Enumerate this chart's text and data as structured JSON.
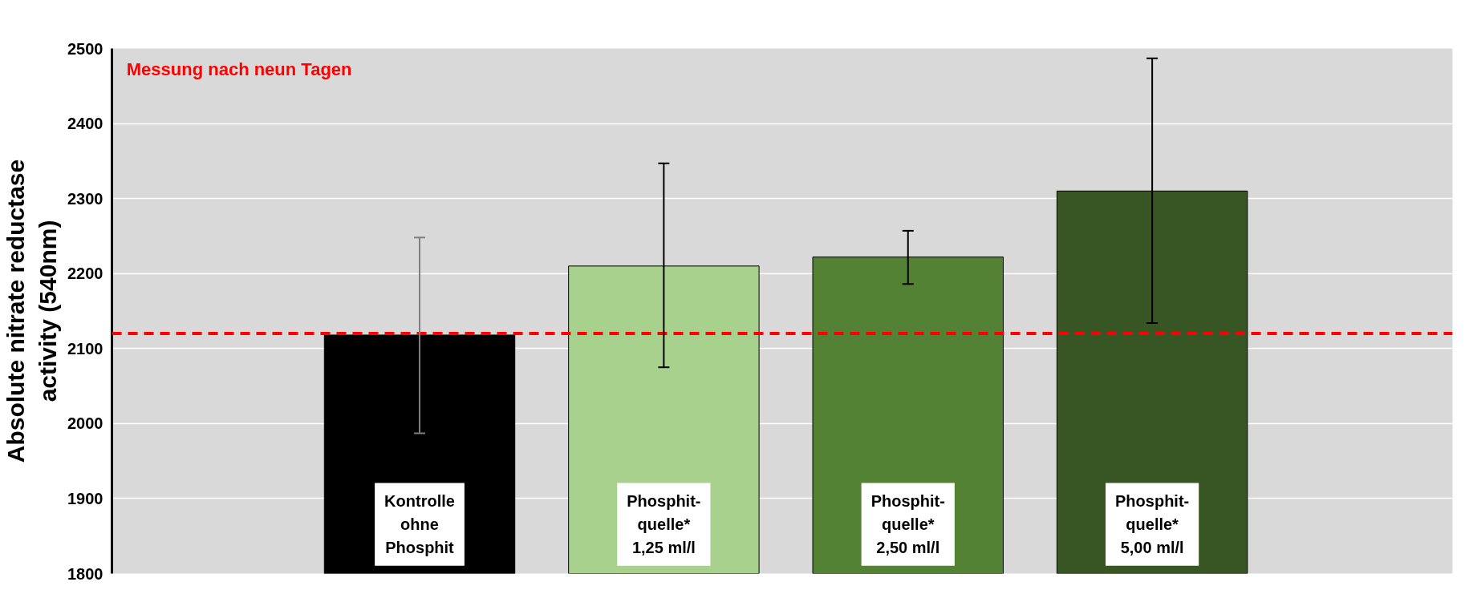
{
  "chart_data": {
    "type": "bar",
    "ylabel": "Absolute nitrate reductase\nactivity (540nm)",
    "categories": [
      "Kontrolle\nohne\nPhosphit",
      "Phosphit-\nquelle*\n1,25 ml/l",
      "Phosphit-\nquelle*\n2,50 ml/l",
      "Phosphit-\nquelle*\n5,00 ml/l"
    ],
    "values": [
      2118,
      2210,
      2222,
      2310
    ],
    "colors": [
      "#000000",
      "#a9d18e",
      "#548235",
      "#375623"
    ],
    "errors": [
      [
        1987,
        2248
      ],
      [
        2075,
        2347
      ],
      [
        2186,
        2257
      ],
      [
        2134,
        2487
      ]
    ],
    "ylim": [
      1800,
      2500
    ],
    "yticks": [
      1800,
      1900,
      2000,
      2100,
      2200,
      2300,
      2400,
      2500
    ],
    "ref_lines": [
      {
        "axis": "y",
        "value": 2120,
        "label": null,
        "color": "#ff0000",
        "line_style": "dashed"
      }
    ],
    "annotations": [
      "Messung nach neun Tagen"
    ],
    "grid": "y"
  }
}
